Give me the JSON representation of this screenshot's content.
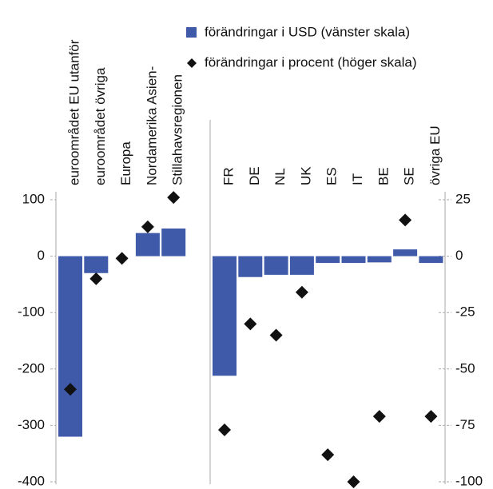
{
  "chart_data": {
    "type": "bar_diamond",
    "categories": [
      "euroområdet EU utanför",
      "euroområdet övriga",
      "Europa",
      "Nordamerika Asien-",
      "Stillahavsregionen",
      "FR",
      "DE",
      "NL",
      "UK",
      "ES",
      "IT",
      "BE",
      "SE",
      "övriga EU"
    ],
    "series": [
      {
        "name": "förändringar i USD (vänster skala)",
        "color": "#3f5aa8",
        "axis": "y",
        "values": [
          -320,
          -30,
          0,
          41,
          49,
          -212,
          -37,
          -33,
          -33,
          -12,
          -12,
          -11,
          12,
          -12
        ]
      },
      {
        "name": "förändringar i procent (höger skala)",
        "color": "#111111",
        "axis": "y2",
        "values": [
          -59,
          -10,
          -1,
          13,
          26,
          -77,
          -30,
          -35,
          -16,
          -88,
          -100,
          -71,
          16,
          -71
        ]
      }
    ],
    "ylim": [
      -400,
      100
    ],
    "yticks": [
      100,
      0,
      -100,
      -200,
      -300,
      -400
    ],
    "y2lim": [
      -100,
      25
    ],
    "y2ticks": [
      25,
      0,
      -25,
      -50,
      -75,
      -100
    ]
  }
}
